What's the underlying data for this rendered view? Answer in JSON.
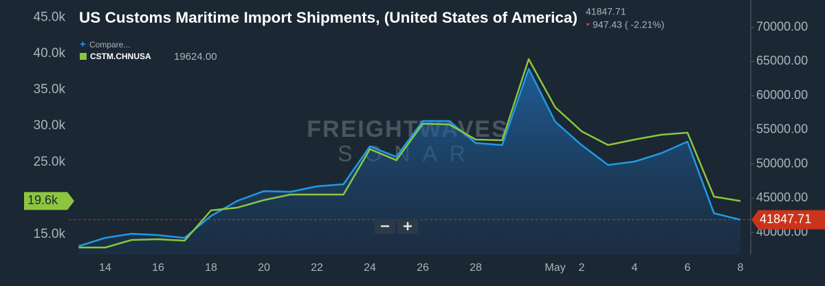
{
  "chart_data": {
    "type": "line",
    "title": "US Customs Maritime Import Shipments, (United States of America)",
    "header": {
      "price": "41847.71",
      "change": "947.43 ( -2.21%)"
    },
    "compare": "Compare...",
    "legend_value": "19624.00",
    "watermark": [
      "FREIGHTWAVES",
      "SONAR"
    ],
    "categories": [
      null,
      "14",
      null,
      "16",
      null,
      "18",
      null,
      "20",
      null,
      "22",
      null,
      "24",
      null,
      "26",
      null,
      "28",
      null,
      null,
      "May",
      "2",
      null,
      "4",
      null,
      "6",
      null,
      "8"
    ],
    "series": [
      {
        "name": "CSTM.CHNUSA",
        "color": "#8cc63f",
        "axis": "y",
        "values": [
          13190,
          13190,
          14240,
          14330,
          14140,
          18330,
          18710,
          19750,
          20510,
          20510,
          20510,
          26790,
          25270,
          30300,
          30210,
          28120,
          28020,
          39240,
          32590,
          29260,
          27360,
          28120,
          28780,
          29070,
          20230,
          19624
        ]
      },
      {
        "color": "#1f9ae6",
        "axis": "y2",
        "area": true,
        "values": [
          37988,
          39195,
          39799,
          39598,
          39195,
          42414,
          44628,
          46036,
          45935,
          46740,
          47042,
          52575,
          51066,
          56297,
          56297,
          53078,
          52776,
          63943,
          56197,
          52776,
          49859,
          50362,
          51569,
          53279,
          42795.14,
          41847.71
        ]
      }
    ],
    "ylim": [
      12243,
      47415
    ],
    "yticks": [
      {
        "value": 15000,
        "label": "15.0k"
      },
      {
        "value": 20000,
        "label": "20.0k"
      },
      {
        "value": 25000,
        "label": "25.0k"
      },
      {
        "value": 30000,
        "label": "30.0k"
      },
      {
        "value": 35000,
        "label": "35.0k"
      },
      {
        "value": 40000,
        "label": "40.0k"
      },
      {
        "value": 45000,
        "label": "45.0k"
      }
    ],
    "y2lim": [
      36781,
      74003
    ],
    "y2ticks": [
      {
        "value": 40000,
        "label": "40000.00"
      },
      {
        "value": 45000,
        "label": "45000.00"
      },
      {
        "value": 50000,
        "label": "50000.00"
      },
      {
        "value": 55000,
        "label": "55000.00"
      },
      {
        "value": 60000,
        "label": "60000.00"
      },
      {
        "value": 65000,
        "label": "65000.00"
      },
      {
        "value": 70000,
        "label": "70000.00"
      }
    ],
    "markers": [
      {
        "axis": "y",
        "value": 19624,
        "label": "19.6k",
        "color": "#8cc63f"
      },
      {
        "axis": "y2",
        "value": 41847.71,
        "label": "41847.71",
        "color": "#c9341b"
      }
    ]
  }
}
